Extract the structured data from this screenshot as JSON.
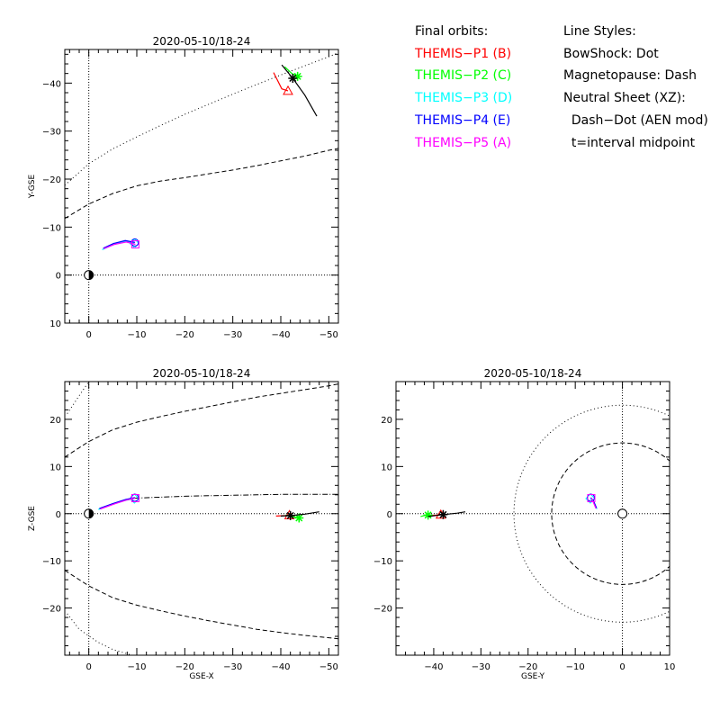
{
  "chart_data": [
    {
      "type": "scatter",
      "panel": "xy",
      "title": "2020-05-10/18-24",
      "xlabel": "",
      "ylabel": "Y-GSE",
      "xlim": [
        5,
        -52
      ],
      "ylim": [
        10,
        -47
      ],
      "xticks": [
        0,
        -10,
        -20,
        -30,
        -40,
        -50
      ],
      "yticks": [
        10,
        0,
        -10,
        -20,
        -30,
        -40
      ],
      "xtick_labels": [
        "0",
        "−10",
        "−20",
        "−30",
        "−40",
        "−50"
      ],
      "ytick_labels": [
        "10",
        "0",
        "−10",
        "−20",
        "−30",
        "−40"
      ],
      "earth": [
        0,
        0
      ],
      "bow_shock": [
        [
          5,
          -18.7
        ],
        [
          0,
          -23.2
        ],
        [
          -5,
          -26.3
        ],
        [
          -10,
          -28.8
        ],
        [
          -15,
          -31.2
        ],
        [
          -20,
          -33.5
        ],
        [
          -25,
          -35.6
        ],
        [
          -30,
          -37.7
        ],
        [
          -35,
          -39.7
        ],
        [
          -40,
          -41.7
        ],
        [
          -45,
          -43.6
        ],
        [
          -50,
          -45.5
        ],
        [
          -52,
          -46.3
        ]
      ],
      "magnetopause": [
        [
          5,
          -11.8
        ],
        [
          0,
          -14.8
        ],
        [
          -5,
          -17.0
        ],
        [
          -10,
          -18.6
        ],
        [
          -15,
          -19.6
        ],
        [
          -20,
          -20.3
        ],
        [
          -25,
          -21.1
        ],
        [
          -30,
          -21.9
        ],
        [
          -35,
          -22.8
        ],
        [
          -40,
          -23.8
        ],
        [
          -45,
          -24.8
        ],
        [
          -50,
          -26.0
        ],
        [
          -52,
          -26.4
        ]
      ],
      "series": [
        {
          "name": "THEMIS-P1 (B)",
          "color": "#ff0000",
          "marker": "triangle",
          "points": [
            [
              -38.5,
              -42.2
            ],
            [
              -40.2,
              -38.8
            ],
            [
              -41.5,
              -38.4
            ]
          ]
        },
        {
          "name": "THEMIS-P2 (C)",
          "color": "#00ff00",
          "marker": "asterisk",
          "points": [
            [
              -40.8,
              -43.4
            ],
            [
              -42.3,
              -42.0
            ],
            [
              -43.5,
              -41.4
            ]
          ]
        },
        {
          "name": "THEMIS-P3 (D)",
          "color": "#00ffff",
          "marker": "diamond",
          "points": [
            [
              -2.8,
              -5.3
            ],
            [
              -5.0,
              -6.3
            ],
            [
              -7.4,
              -7.0
            ],
            [
              -9.5,
              -6.6
            ]
          ]
        },
        {
          "name": "THEMIS-P4 (E)",
          "color": "#0000ff",
          "marker": "circle",
          "points": [
            [
              -3.0,
              -5.6
            ],
            [
              -5.2,
              -6.6
            ],
            [
              -7.6,
              -7.2
            ],
            [
              -9.6,
              -6.8
            ]
          ]
        },
        {
          "name": "THEMIS-P5 (A)",
          "color": "#ff00ff",
          "marker": "square",
          "points": [
            [
              -3.1,
              -5.5
            ],
            [
              -5.4,
              -6.4
            ],
            [
              -7.8,
              -6.9
            ],
            [
              -9.7,
              -6.4
            ]
          ]
        },
        {
          "name": "",
          "color": "#000000",
          "marker": "asterisk-end",
          "points": [
            [
              -40.2,
              -43.8
            ],
            [
              -42.5,
              -41.0
            ],
            [
              -45.0,
              -37.5
            ],
            [
              -47.5,
              -33.1
            ]
          ]
        }
      ]
    },
    {
      "type": "scatter",
      "panel": "xz",
      "title": "2020-05-10/18-24",
      "xlabel": "GSE-X",
      "ylabel": "Z-GSE",
      "xlim": [
        5,
        -52
      ],
      "ylim": [
        -30,
        28
      ],
      "xticks": [
        0,
        -10,
        -20,
        -30,
        -40,
        -50
      ],
      "yticks": [
        -20,
        -10,
        0,
        10,
        20
      ],
      "xtick_labels": [
        "0",
        "−10",
        "−20",
        "−30",
        "−40",
        "−50"
      ],
      "ytick_labels": [
        "−20",
        "−10",
        "0",
        "10",
        "20"
      ],
      "earth": [
        0,
        0
      ],
      "bow_shock_upper": [
        [
          4.5,
          21.2
        ],
        [
          2.0,
          25.0
        ],
        [
          0,
          28.0
        ]
      ],
      "bow_shock_lower": [
        [
          4.5,
          -21.2
        ],
        [
          2.0,
          -24.5
        ],
        [
          -2.0,
          -27.3
        ],
        [
          -5.0,
          -28.8
        ],
        [
          -9.0,
          -30.0
        ]
      ],
      "magnetopause_upper": [
        [
          5,
          12.0
        ],
        [
          0,
          15.3
        ],
        [
          -5,
          17.8
        ],
        [
          -10,
          19.4
        ],
        [
          -15,
          20.6
        ],
        [
          -20,
          21.7
        ],
        [
          -25,
          22.7
        ],
        [
          -30,
          23.7
        ],
        [
          -35,
          24.7
        ],
        [
          -40,
          25.5
        ],
        [
          -45,
          26.3
        ],
        [
          -50,
          27.1
        ],
        [
          -52,
          27.5
        ]
      ],
      "magnetopause_lower": [
        [
          5,
          -12.0
        ],
        [
          0,
          -15.3
        ],
        [
          -5,
          -17.8
        ],
        [
          -10,
          -19.4
        ],
        [
          -15,
          -20.6
        ],
        [
          -20,
          -21.7
        ],
        [
          -25,
          -22.7
        ],
        [
          -30,
          -23.6
        ],
        [
          -35,
          -24.5
        ],
        [
          -40,
          -25.2
        ],
        [
          -45,
          -25.8
        ],
        [
          -50,
          -26.3
        ],
        [
          -52,
          -26.5
        ]
      ],
      "neutral_sheet": [
        [
          -9.5,
          3.3
        ],
        [
          -15,
          3.5
        ],
        [
          -20,
          3.7
        ],
        [
          -25,
          3.8
        ],
        [
          -30,
          3.9
        ],
        [
          -35,
          4.0
        ],
        [
          -40,
          4.1
        ],
        [
          -45,
          4.1
        ],
        [
          -52,
          4.1
        ]
      ],
      "series": [
        {
          "name": "THEMIS-P1 (B)",
          "color": "#ff0000",
          "marker": "triangle",
          "points": [
            [
              -39.0,
              -0.5
            ],
            [
              -41.0,
              -0.4
            ],
            [
              -41.8,
              -0.3
            ]
          ]
        },
        {
          "name": "THEMIS-P2 (C)",
          "color": "#00ff00",
          "marker": "asterisk",
          "points": [
            [
              -41.0,
              -0.3
            ],
            [
              -42.5,
              -0.6
            ],
            [
              -43.8,
              -0.9
            ]
          ]
        },
        {
          "name": "THEMIS-P3 (D)",
          "color": "#00ffff",
          "marker": "diamond",
          "points": [
            [
              -2.0,
              0.9
            ],
            [
              -5.0,
              2.0
            ],
            [
              -7.5,
              2.8
            ],
            [
              -9.5,
              3.2
            ]
          ]
        },
        {
          "name": "THEMIS-P4 (E)",
          "color": "#0000ff",
          "marker": "circle",
          "points": [
            [
              -2.2,
              1.1
            ],
            [
              -5.2,
              2.2
            ],
            [
              -7.7,
              3.0
            ],
            [
              -9.6,
              3.4
            ]
          ]
        },
        {
          "name": "THEMIS-P5 (A)",
          "color": "#ff00ff",
          "marker": "square",
          "points": [
            [
              -2.4,
              1.0
            ],
            [
              -5.4,
              2.1
            ],
            [
              -7.9,
              2.9
            ],
            [
              -9.7,
              3.3
            ]
          ]
        },
        {
          "name": "",
          "color": "#000000",
          "marker": "asterisk-end",
          "points": [
            [
              -40.0,
              -0.5
            ],
            [
              -42.0,
              -0.4
            ],
            [
              -45.0,
              -0.1
            ],
            [
              -48.0,
              0.4
            ]
          ]
        }
      ]
    },
    {
      "type": "scatter",
      "panel": "yz",
      "title": "2020-05-10/18-24",
      "xlabel": "GSE-Y",
      "ylabel": "",
      "xlim": [
        -48,
        10
      ],
      "ylim": [
        -30,
        28
      ],
      "xticks": [
        -40,
        -30,
        -20,
        -10,
        0,
        10
      ],
      "yticks": [
        -20,
        -10,
        0,
        10,
        20
      ],
      "xtick_labels": [
        "−40",
        "−30",
        "−20",
        "−10",
        "0",
        "10"
      ],
      "ytick_labels": [
        "−20",
        "−10",
        "0",
        "10",
        "20"
      ],
      "earth": [
        0,
        0
      ],
      "bow_shock_radius": 23,
      "magnetopause_radius": 15,
      "series": [
        {
          "name": "THEMIS-P1 (B)",
          "color": "#ff0000",
          "marker": "triangle",
          "points": [
            [
              -41.5,
              -0.4
            ],
            [
              -39.5,
              -0.3
            ],
            [
              -38.5,
              -0.2
            ]
          ]
        },
        {
          "name": "THEMIS-P2 (C)",
          "color": "#00ff00",
          "marker": "asterisk",
          "points": [
            [
              -42.8,
              -0.6
            ],
            [
              -42.0,
              -0.4
            ],
            [
              -41.2,
              -0.3
            ]
          ]
        },
        {
          "name": "THEMIS-P3 (D)",
          "color": "#00ffff",
          "marker": "diamond",
          "points": [
            [
              -5.4,
              1.0
            ],
            [
              -6.0,
              2.4
            ],
            [
              -6.8,
              3.2
            ]
          ]
        },
        {
          "name": "THEMIS-P4 (E)",
          "color": "#0000ff",
          "marker": "circle",
          "points": [
            [
              -5.5,
              1.2
            ],
            [
              -6.1,
              2.6
            ],
            [
              -6.7,
              3.4
            ]
          ]
        },
        {
          "name": "THEMIS-P5 (A)",
          "color": "#ff00ff",
          "marker": "square",
          "points": [
            [
              -5.6,
              1.1
            ],
            [
              -6.2,
              2.5
            ],
            [
              -6.6,
              3.3
            ]
          ]
        },
        {
          "name": "",
          "color": "#000000",
          "marker": "asterisk-end",
          "points": [
            [
              -41.2,
              -0.6
            ],
            [
              -38.0,
              -0.2
            ],
            [
              -35.0,
              0.1
            ],
            [
              -33.3,
              0.4
            ]
          ]
        }
      ]
    }
  ],
  "legend": {
    "orbits_title": "Final orbits:",
    "orbits": [
      {
        "label": "THEMIS−P1 (B)",
        "color": "#ff0000"
      },
      {
        "label": "THEMIS−P2 (C)",
        "color": "#00ff00"
      },
      {
        "label": "THEMIS−P3 (D)",
        "color": "#00ffff"
      },
      {
        "label": "THEMIS−P4 (E)",
        "color": "#0000ff"
      },
      {
        "label": "THEMIS−P5 (A)",
        "color": "#ff00ff"
      }
    ],
    "styles_title": "Line Styles:",
    "styles": [
      "BowShock: Dot",
      "Magnetopause: Dash",
      "Neutral Sheet (XZ):",
      "  Dash−Dot (AEN mod)",
      "  t=interval midpoint"
    ]
  }
}
